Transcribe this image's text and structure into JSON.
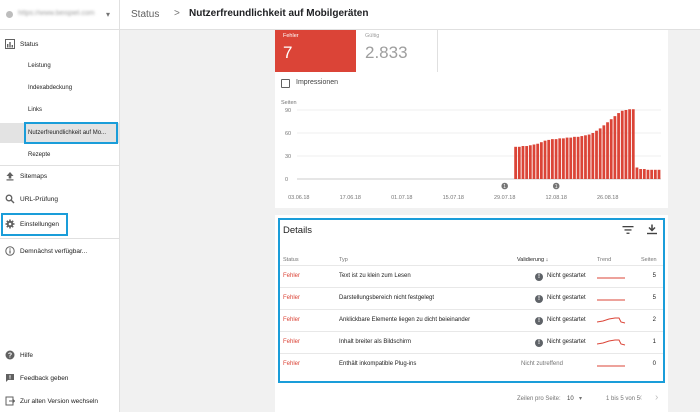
{
  "property": {
    "url": "https://www.beispiel.com",
    "favicon": "site-favicon-icon"
  },
  "header": {
    "crumb_root": "Status",
    "separator": ">",
    "title": "Nutzerfreundlichkeit auf Mobilgeräten"
  },
  "sidebar": {
    "items": [
      {
        "label": "Status",
        "icon": "bar-chart-icon"
      },
      {
        "label": "Leistung"
      },
      {
        "label": "Indexabdeckung"
      },
      {
        "label": "Links"
      },
      {
        "label": "Nutzerfreundlichkeit auf Mo...",
        "active": true
      },
      {
        "label": "Rezepte"
      },
      {
        "label": "Sitemaps",
        "icon": "upload-icon"
      },
      {
        "label": "URL-Prüfung",
        "icon": "search-icon"
      },
      {
        "label": "Einstellungen",
        "icon": "gear-icon"
      },
      {
        "label": "Demnächst verfügbar...",
        "icon": "info-icon"
      }
    ],
    "bottom": [
      {
        "label": "Hilfe",
        "icon": "help-icon"
      },
      {
        "label": "Feedback geben",
        "icon": "feedback-icon"
      },
      {
        "label": "Zur alten Version wechseln",
        "icon": "exit-icon"
      }
    ]
  },
  "stats": {
    "error": {
      "label": "Fehler",
      "value": "7"
    },
    "valid": {
      "label": "Gültig",
      "value": "2.833"
    }
  },
  "impressions_label": "Impressionen",
  "colors": {
    "error": "#db4437",
    "highlight": "#1a9dd9"
  },
  "chart_data": {
    "type": "bar",
    "ylabel": "Seiten",
    "yticks": [
      "90",
      "60",
      "30",
      "0"
    ],
    "ylim": [
      0,
      90
    ],
    "xtick_labels": [
      "03.06.18",
      "17.06.18",
      "01.07.18",
      "15.07.18",
      "29.07.18",
      "12.08.18",
      "26.08.18"
    ],
    "annotations": [
      {
        "label": "1",
        "at_day": 56
      },
      {
        "label": "1",
        "at_day": 70
      }
    ],
    "values": [
      0,
      0,
      0,
      0,
      0,
      0,
      0,
      0,
      0,
      0,
      0,
      0,
      0,
      0,
      0,
      0,
      0,
      0,
      0,
      0,
      0,
      0,
      0,
      0,
      0,
      0,
      0,
      0,
      0,
      0,
      0,
      0,
      0,
      0,
      0,
      0,
      0,
      0,
      0,
      0,
      0,
      0,
      0,
      0,
      0,
      0,
      0,
      0,
      0,
      0,
      0,
      0,
      0,
      0,
      0,
      0,
      0,
      0,
      0,
      42,
      42,
      43,
      43,
      44,
      45,
      46,
      48,
      50,
      51,
      52,
      52,
      53,
      53,
      54,
      54,
      55,
      55,
      56,
      57,
      58,
      60,
      63,
      66,
      70,
      74,
      78,
      82,
      86,
      89,
      90,
      91,
      91,
      15,
      13,
      13,
      12,
      12,
      12,
      12
    ]
  },
  "details": {
    "title": "Details",
    "filter_icon": "filter-icon",
    "download_icon": "download-icon",
    "columns": {
      "status": "Status",
      "type": "Typ",
      "validation": "Validierung",
      "trend": "Trend",
      "pages": "Seiten"
    },
    "rows": [
      {
        "status": "Fehler",
        "type": "Text ist zu klein zum Lesen",
        "validation": "Nicht gestartet",
        "pages": "5",
        "trend": "flat"
      },
      {
        "status": "Fehler",
        "type": "Darstellungsbereich nicht festgelegt",
        "validation": "Nicht gestartet",
        "pages": "5",
        "trend": "flat"
      },
      {
        "status": "Fehler",
        "type": "Anklickbare Elemente liegen zu dicht beieinander",
        "validation": "Nicht gestartet",
        "pages": "2",
        "trend": "bump"
      },
      {
        "status": "Fehler",
        "type": "Inhalt breiter als Bildschirm",
        "validation": "Nicht gestartet",
        "pages": "1",
        "trend": "bump"
      },
      {
        "status": "Fehler",
        "type": "Enthält inkompatible Plug-ins",
        "validation": "Nicht zutreffend",
        "pages": "0",
        "trend": "flat",
        "muted": true
      }
    ],
    "pagination": {
      "label": "Zeilen pro Seite:",
      "size": "10",
      "range": "1 bis 5 von 5"
    }
  }
}
